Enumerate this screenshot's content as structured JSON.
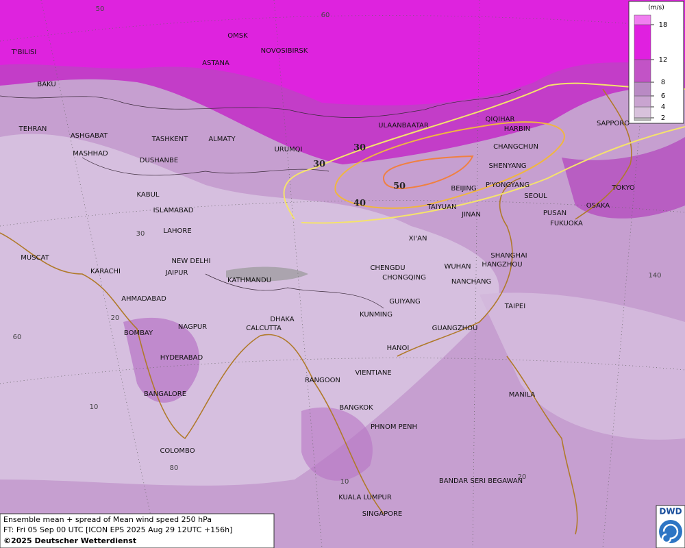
{
  "map": {
    "cities": [
      "OMSK",
      "NOVOSIBIRSK",
      "ASTANA",
      "T'BILISI",
      "BAKU",
      "TEHRAN",
      "ASHGABAT",
      "MASHHAD",
      "TASHKENT",
      "ALMATY",
      "DUSHANBE",
      "URUMQI",
      "ULAANBAATAR",
      "QIQIHAR",
      "HARBIN",
      "CHANGCHUN",
      "SHENYANG",
      "SAPPORO",
      "BEIJING",
      "P'YONGYANG",
      "SEOUL",
      "TOKYO",
      "OSAKA",
      "PUSAN",
      "FUKUOKA",
      "TAIYUAN",
      "JINAN",
      "XI'AN",
      "KABUL",
      "ISLAMABAD",
      "LAHORE",
      "NEW DELHI",
      "JAIPUR",
      "MUSCAT",
      "KARACHI",
      "AHMADABAD",
      "KATHMANDU",
      "CHENGDU",
      "CHONGQING",
      "WUHAN",
      "SHANGHAI",
      "HANGZHOU",
      "NANCHANG",
      "GUIYANG",
      "TAIPEI",
      "KUNMING",
      "DHAKA",
      "CALCUTTA",
      "NAGPUR",
      "BOMBAY",
      "GUANGZHOU",
      "HANOI",
      "HYDERABAD",
      "RANGOON",
      "VIENTIANE",
      "BANGALORE",
      "MANILA",
      "BANGKOK",
      "PHNOM PENH",
      "COLOMBO",
      "BANDAR SERI BEGAWAN",
      "KUALA LUMPUR",
      "SINGAPORE"
    ],
    "graticule_labels": [
      50,
      60,
      30,
      20,
      60,
      10,
      80,
      10,
      20,
      140
    ],
    "contour_labels": [
      30,
      30,
      40,
      50
    ]
  },
  "legend": {
    "unit": "(m/s)",
    "ticks": [
      2,
      4,
      6,
      8,
      12,
      18
    ]
  },
  "caption": {
    "line1": "Ensemble mean + spread of Mean wind speed 250 hPa",
    "line2": "FT: Fri 05 Sep 00 UTC [ICON EPS 2025 Aug 29 12UTC +156h]",
    "line3": "©2025 Deutscher Wetterdienst"
  },
  "logo": "DWD"
}
